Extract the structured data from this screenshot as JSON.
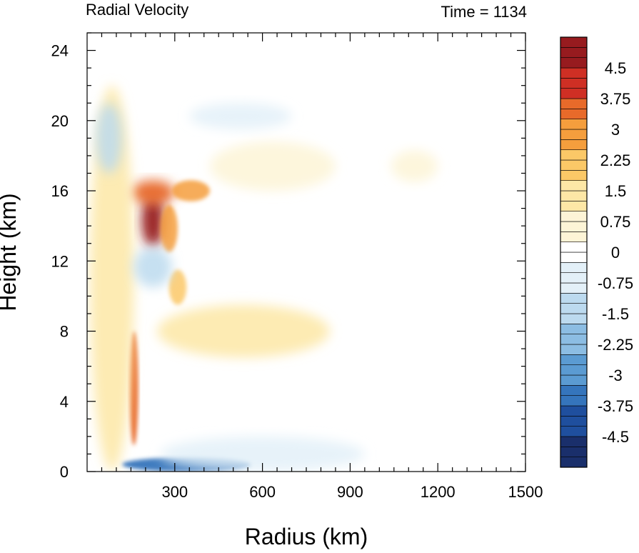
{
  "chart_data": {
    "type": "heatmap",
    "title_left": "Radial Velocity",
    "title_right": "Time = 1134",
    "xlabel": "Radius (km)",
    "ylabel": "Height (km)",
    "xlim": [
      0,
      1500
    ],
    "ylim": [
      0,
      25
    ],
    "xticks": [
      300,
      600,
      900,
      1200,
      1500
    ],
    "yticks": [
      0,
      4,
      8,
      12,
      16,
      20,
      24
    ],
    "xtick_labels": [
      "300",
      "600",
      "900",
      "1200",
      "1500"
    ],
    "ytick_labels": [
      "0",
      "4",
      "8",
      "12",
      "16",
      "20",
      "24"
    ],
    "colorbar": {
      "levels": [
        -5.25,
        5.25
      ],
      "step": 0.25,
      "labels": [
        "4.5",
        "3.75",
        "3",
        "2.25",
        "1.5",
        "0.75",
        "0",
        "-0.75",
        "-1.5",
        "-2.25",
        "-3",
        "-3.75",
        "-4.5"
      ],
      "label_values": [
        4.5,
        3.75,
        3,
        2.25,
        1.5,
        0.75,
        0,
        -0.75,
        -1.5,
        -2.25,
        -3,
        -3.75,
        -4.5
      ],
      "colors": [
        "#1a2f6b",
        "#1f4f9e",
        "#3575bc",
        "#5b9bd2",
        "#8cbde3",
        "#bcdaef",
        "#e3f0f8",
        "#ffffff",
        "#fdf4d6",
        "#fde7a6",
        "#fbc867",
        "#f59e3d",
        "#e86a2a",
        "#cf2f24",
        "#971b1f"
      ]
    },
    "features": [
      {
        "kind": "blob",
        "r": [
          185,
          265
        ],
        "z": [
          12.8,
          15.8
        ],
        "value": 5.2
      },
      {
        "kind": "blob",
        "r": [
          150,
          300
        ],
        "z": [
          15.2,
          16.6
        ],
        "value": 3.2
      },
      {
        "kind": "blob",
        "r": [
          290,
          420
        ],
        "z": [
          15.4,
          16.6
        ],
        "value": 2.6
      },
      {
        "kind": "blob",
        "r": [
          250,
          310
        ],
        "z": [
          12.5,
          15.2
        ],
        "value": 2.6
      },
      {
        "kind": "blob",
        "r": [
          280,
          340
        ],
        "z": [
          9.5,
          11.5
        ],
        "value": 2.0
      },
      {
        "kind": "blob",
        "r": [
          240,
          830
        ],
        "z": [
          6.5,
          9.5
        ],
        "value": 1.2
      },
      {
        "kind": "blob",
        "r": [
          420,
          850
        ],
        "z": [
          16.0,
          18.8
        ],
        "value": 1.0
      },
      {
        "kind": "blob",
        "r": [
          1040,
          1200
        ],
        "z": [
          16.5,
          18.3
        ],
        "value": 1.0
      },
      {
        "kind": "blob",
        "r": [
          145,
          175
        ],
        "z": [
          1.5,
          8.0
        ],
        "value": 3.8
      },
      {
        "kind": "blob",
        "r": [
          10,
          160
        ],
        "z": [
          0,
          22
        ],
        "value": 1.2
      },
      {
        "kind": "blob",
        "r": [
          120,
          560
        ],
        "z": [
          0,
          0.8
        ],
        "value": -3.8
      },
      {
        "kind": "blob",
        "r": [
          250,
          950
        ],
        "z": [
          0,
          2.0
        ],
        "value": -1.0
      },
      {
        "kind": "blob",
        "r": [
          30,
          120
        ],
        "z": [
          17,
          21
        ],
        "value": -1.6
      },
      {
        "kind": "blob",
        "r": [
          160,
          290
        ],
        "z": [
          10.5,
          12.8
        ],
        "value": -1.2
      },
      {
        "kind": "blob",
        "r": [
          350,
          700
        ],
        "z": [
          19.5,
          21
        ],
        "value": -0.7
      }
    ]
  }
}
